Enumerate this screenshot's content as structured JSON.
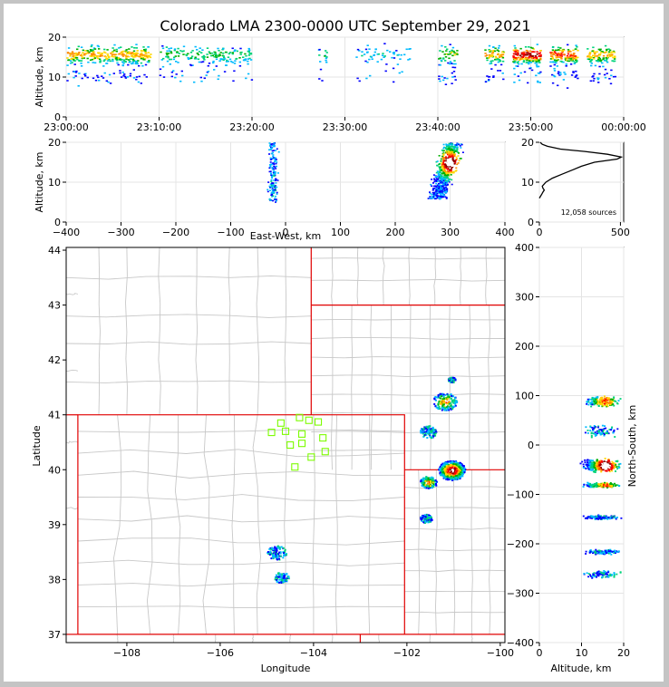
{
  "chart_data": [
    {
      "panel": "altitude-time",
      "type": "heatmap",
      "title": "Colorado LMA 2300-0000 UTC September 29, 2021",
      "xlabel": "",
      "ylabel": "Altitude, km",
      "xticks": [
        "23:00:00",
        "23:10:00",
        "23:20:00",
        "23:30:00",
        "23:40:00",
        "23:50:00",
        "00:00:00"
      ],
      "xlim_minutes": [
        0,
        60
      ],
      "ylim": [
        0,
        20
      ],
      "yticks": [
        0,
        10,
        20
      ],
      "activity_bursts_minutes": [
        [
          0,
          9,
          4
        ],
        [
          10,
          20,
          2
        ],
        [
          27,
          28,
          1.5
        ],
        [
          31,
          37,
          1
        ],
        [
          40,
          42,
          3
        ],
        [
          45,
          47,
          4
        ],
        [
          48,
          51,
          6
        ],
        [
          52,
          55,
          5
        ],
        [
          56,
          59,
          4
        ]
      ]
    },
    {
      "panel": "altitude-eastwest",
      "type": "heatmap",
      "xlabel": "East-West, km",
      "ylabel": "Altitude, km",
      "xlim": [
        -400,
        400
      ],
      "xticks": [
        -400,
        -300,
        -200,
        -100,
        0,
        100,
        200,
        300,
        400
      ],
      "ylim": [
        0,
        20
      ],
      "yticks": [
        0,
        10,
        20
      ],
      "clusters": [
        {
          "x": -25,
          "x_spread": 12,
          "alt_low": 5,
          "alt_high": 20,
          "density": 1
        },
        {
          "x": 290,
          "x_spread": 25,
          "alt_low": 6,
          "alt_high": 20,
          "density": 8
        }
      ]
    },
    {
      "panel": "altitude-histogram",
      "type": "line",
      "xlim": [
        0,
        520
      ],
      "xticks": [
        0,
        500
      ],
      "ylim": [
        0,
        20
      ],
      "yticks": [
        0,
        10,
        20
      ],
      "annotation": "12,058 sources",
      "profile": [
        [
          0,
          6
        ],
        [
          15,
          7
        ],
        [
          22,
          7.5
        ],
        [
          30,
          8
        ],
        [
          22,
          8.5
        ],
        [
          18,
          9
        ],
        [
          40,
          10
        ],
        [
          80,
          11
        ],
        [
          140,
          12
        ],
        [
          200,
          13
        ],
        [
          260,
          14
        ],
        [
          340,
          15
        ],
        [
          480,
          15.8
        ],
        [
          505,
          16.3
        ],
        [
          420,
          17
        ],
        [
          280,
          17.7
        ],
        [
          130,
          18.3
        ],
        [
          50,
          19
        ],
        [
          18,
          19.5
        ],
        [
          5,
          20
        ]
      ]
    },
    {
      "panel": "plan-view",
      "type": "scatter",
      "xlabel": "Longitude",
      "ylabel": "Latitude",
      "xlim": [
        -109.3,
        -99.9
      ],
      "xticks": [
        -108,
        -106,
        -104,
        -102,
        -100
      ],
      "ylim": [
        36.85,
        44.05
      ],
      "yticks": [
        37,
        38,
        39,
        40,
        41,
        42,
        43,
        44
      ],
      "stations": [
        [
          -104.3,
          40.95
        ],
        [
          -104.7,
          40.85
        ],
        [
          -104.1,
          40.9
        ],
        [
          -103.9,
          40.87
        ],
        [
          -104.9,
          40.68
        ],
        [
          -104.6,
          40.7
        ],
        [
          -104.25,
          40.65
        ],
        [
          -103.8,
          40.58
        ],
        [
          -104.5,
          40.45
        ],
        [
          -104.25,
          40.48
        ],
        [
          -103.75,
          40.33
        ],
        [
          -104.05,
          40.23
        ],
        [
          -104.4,
          40.05
        ]
      ],
      "clusters": [
        {
          "lon": -101.05,
          "lat": 40.0,
          "r": 0.22,
          "density": 8
        },
        {
          "lon": -101.2,
          "lat": 41.25,
          "r": 0.2,
          "density": 2
        },
        {
          "lon": -101.55,
          "lat": 40.7,
          "r": 0.14,
          "density": 1
        },
        {
          "lon": -101.55,
          "lat": 39.78,
          "r": 0.14,
          "density": 2
        },
        {
          "lon": -101.6,
          "lat": 39.12,
          "r": 0.1,
          "density": 1
        },
        {
          "lon": -104.8,
          "lat": 38.5,
          "r": 0.16,
          "density": 1
        },
        {
          "lon": -104.7,
          "lat": 38.05,
          "r": 0.12,
          "density": 1
        },
        {
          "lon": -101.05,
          "lat": 41.65,
          "r": 0.06,
          "density": 0.5
        }
      ]
    },
    {
      "panel": "northsouth-altitude",
      "type": "heatmap",
      "xlabel": "Altitude, km",
      "ylabel": "North-South, km",
      "xlim": [
        0,
        20
      ],
      "xticks": [
        0,
        10,
        20
      ],
      "ylim": [
        -400,
        400
      ],
      "yticks": [
        -400,
        -300,
        -200,
        -100,
        0,
        100,
        200,
        300,
        400
      ],
      "clusters": [
        {
          "ns": -40,
          "spread": 16,
          "density": 8
        },
        {
          "ns": 90,
          "spread": 14,
          "density": 3
        },
        {
          "ns": -80,
          "spread": 6,
          "density": 3
        },
        {
          "ns": -145,
          "spread": 6,
          "density": 1.5
        },
        {
          "ns": -215,
          "spread": 6,
          "density": 1.2
        },
        {
          "ns": -260,
          "spread": 10,
          "density": 1
        },
        {
          "ns": 30,
          "spread": 15,
          "density": 0.8
        }
      ]
    }
  ],
  "colors": {
    "state_border": "#e00000",
    "county_border": "#c8c8c8",
    "station": "#7cfc00",
    "density_scale": [
      "#0000ff",
      "#00bbff",
      "#00d37a",
      "#00b000",
      "#ffd700",
      "#ff8c00",
      "#ff0000",
      "#8b0000",
      "#ffffff"
    ]
  }
}
